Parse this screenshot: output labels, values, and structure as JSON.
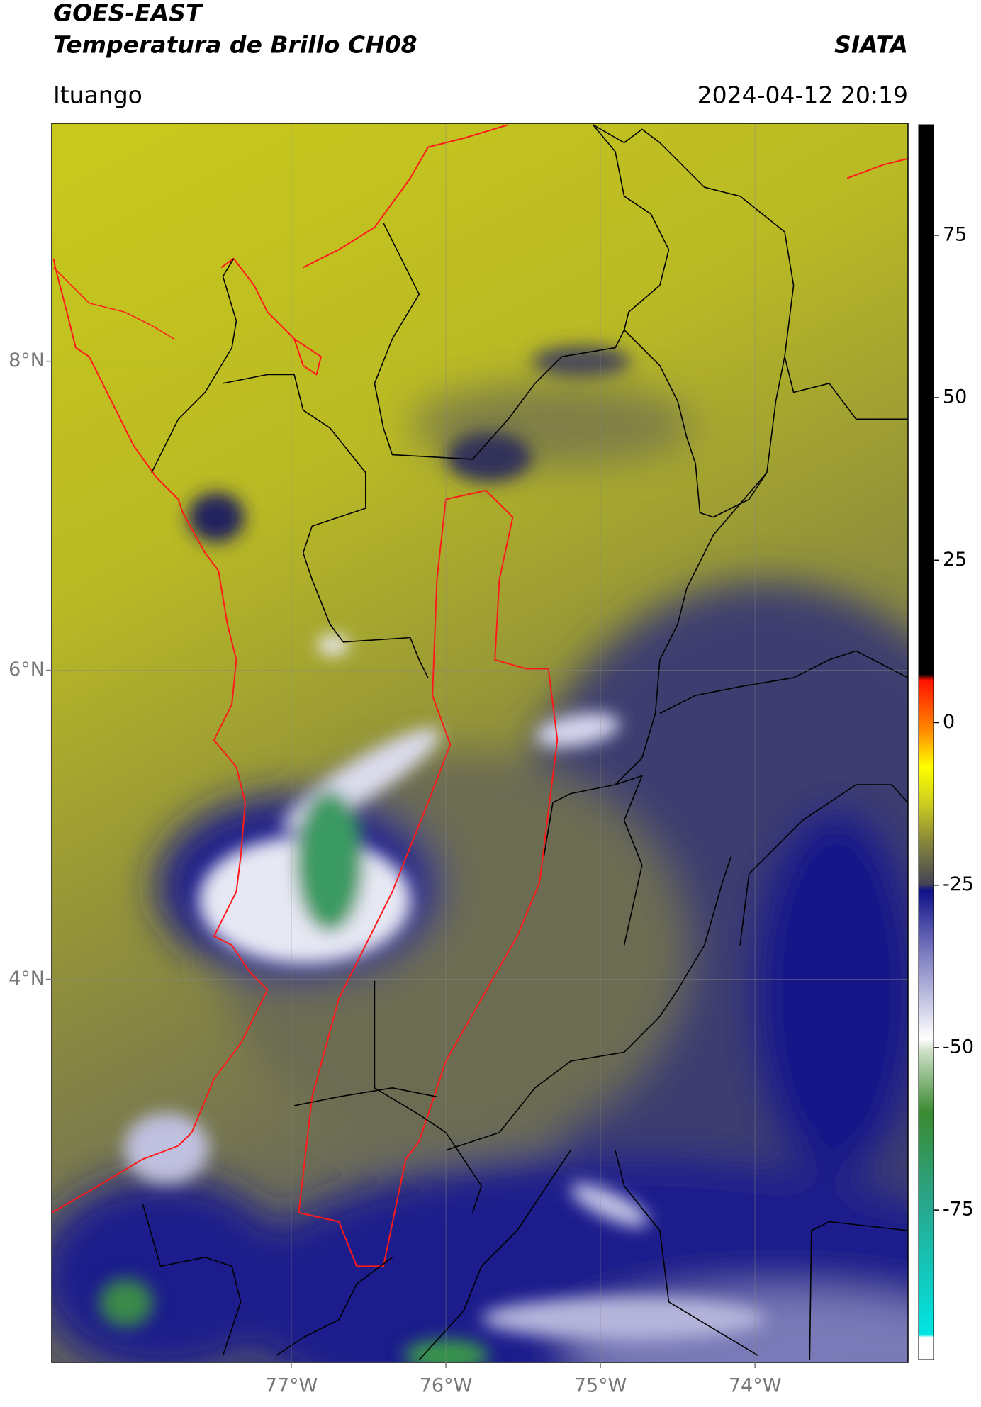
{
  "chart_data": {
    "type": "map",
    "title": "GOES-EAST",
    "subtitle": "Temperatura de Brillo CH08",
    "source": "SIATA",
    "location": "Ituango",
    "timestamp": "2024-04-12 20:19",
    "xlim": [
      -78.55,
      -73.01
    ],
    "xticks": [
      {
        "value": -77,
        "label": "77°W"
      },
      {
        "value": -76,
        "label": "76°W"
      },
      {
        "value": -75,
        "label": "75°W"
      },
      {
        "value": -74,
        "label": "74°W"
      }
    ],
    "ylim": [
      1.52,
      9.54
    ],
    "yticks": [
      {
        "value": 4,
        "label": "4°N"
      },
      {
        "value": 6,
        "label": "6°N"
      },
      {
        "value": 8,
        "label": "8°N"
      }
    ],
    "grid": true,
    "colorbar": {
      "lim": [
        -98,
        92
      ],
      "ticks": [
        -75,
        -50,
        -25,
        0,
        25,
        50,
        75
      ]
    }
  }
}
